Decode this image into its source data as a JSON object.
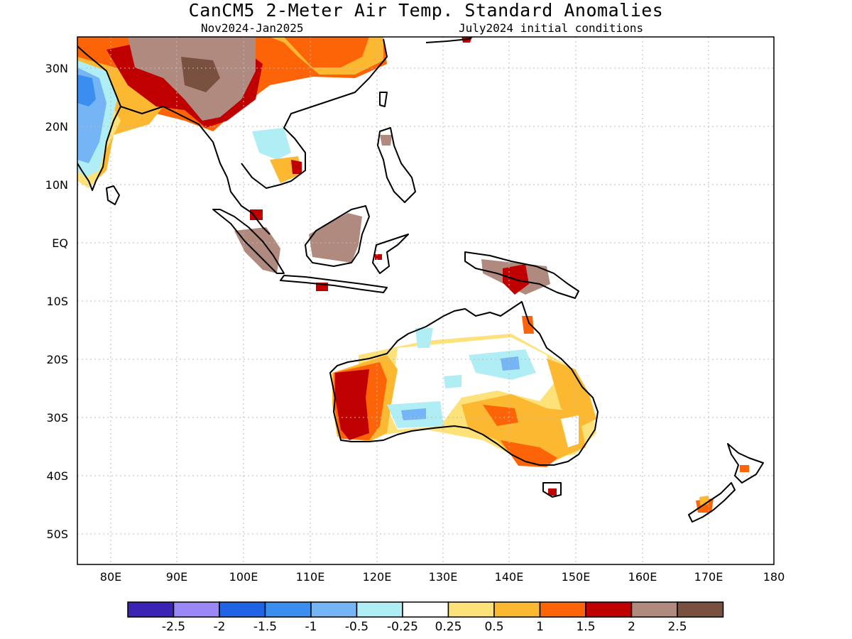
{
  "title": "CanCM5 2-Meter Air Temp. Standard Anomalies",
  "subtitle_left": "Nov2024-Jan2025",
  "subtitle_right": "July2024 initial conditions",
  "lon_labels": [
    "80E",
    "90E",
    "100E",
    "110E",
    "120E",
    "130E",
    "140E",
    "150E",
    "160E",
    "170E",
    "180"
  ],
  "lat_labels": [
    "30N",
    "20N",
    "10N",
    "EQ",
    "10S",
    "20S",
    "30S",
    "40S",
    "50S"
  ],
  "colorbar": {
    "colors": [
      "#3b23b4",
      "#9b87f5",
      "#1f63e6",
      "#3a8ef0",
      "#75b5f5",
      "#b0eef5",
      "#ffffff",
      "#fde27a",
      "#fdb832",
      "#fd6408",
      "#c00000",
      "#b08a7e",
      "#7a5040"
    ],
    "labels": [
      "-2.5",
      "-2",
      "-1.5",
      "-1",
      "-0.5",
      "-0.25",
      "0.25",
      "0.5",
      "1",
      "1.5",
      "2",
      "2.5"
    ]
  },
  "colors": {
    "gray_brown": "#b08a7e",
    "dark_brown": "#7a5040",
    "dark_red": "#c00000",
    "orange": "#fd6408",
    "gold": "#fdb832",
    "yellow": "#fde27a",
    "lightblue": "#b0eef5",
    "sky": "#75b5f5",
    "blue": "#3a8ef0"
  }
}
